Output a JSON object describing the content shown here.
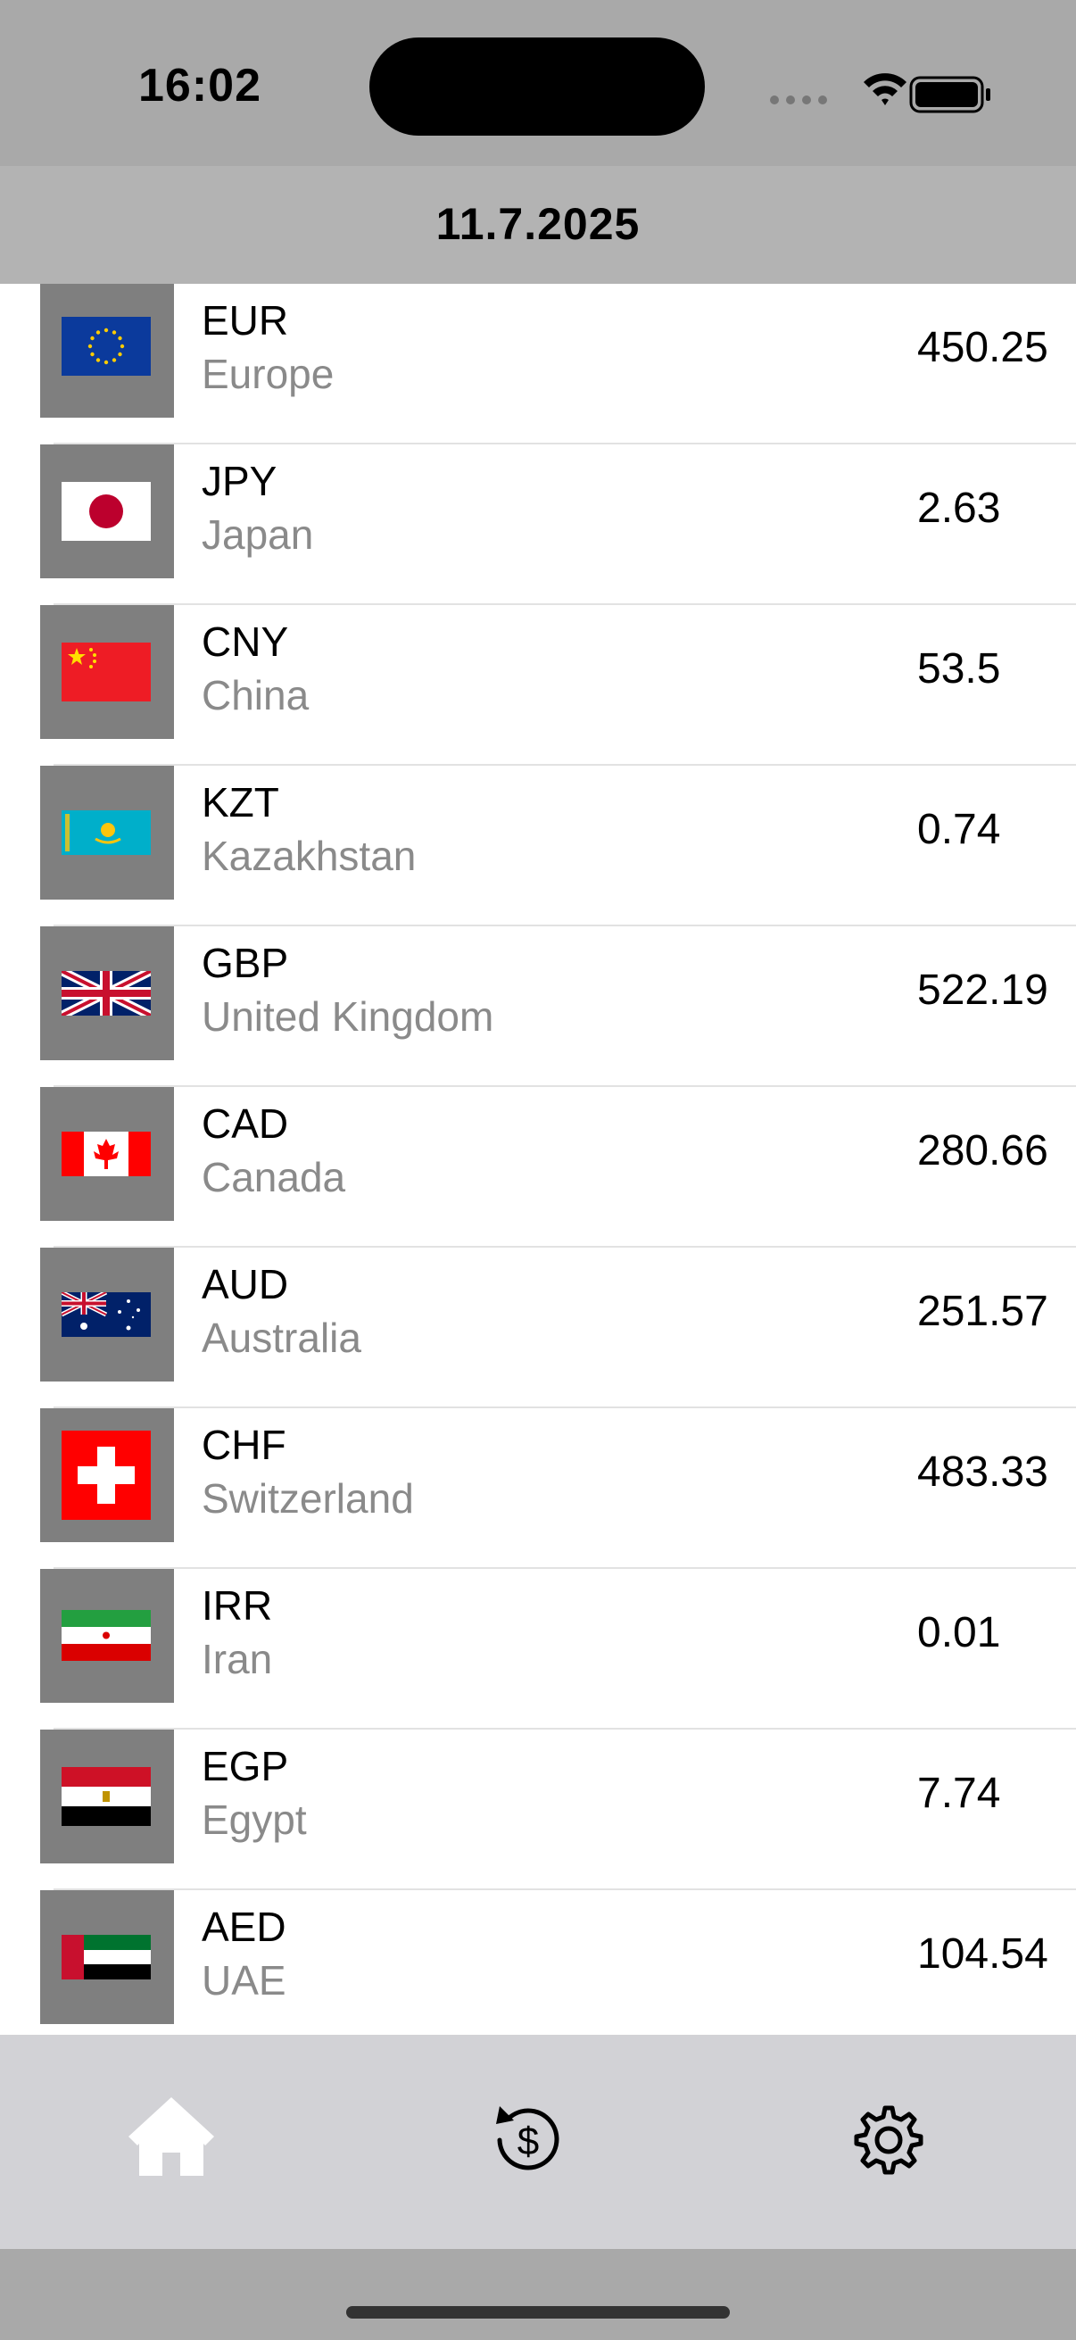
{
  "status_bar": {
    "time": "16:02"
  },
  "header": {
    "date": "11.7.2025"
  },
  "rates": [
    {
      "code": "EUR",
      "country": "Europe",
      "value": "450.25",
      "flag": "eu-flag-icon"
    },
    {
      "code": "JPY",
      "country": "Japan",
      "value": "2.63",
      "flag": "japan-flag-icon"
    },
    {
      "code": "CNY",
      "country": "China",
      "value": "53.5",
      "flag": "china-flag-icon"
    },
    {
      "code": "KZT",
      "country": "Kazakhstan",
      "value": "0.74",
      "flag": "kazakhstan-flag-icon"
    },
    {
      "code": "GBP",
      "country": "United Kingdom",
      "value": "522.19",
      "flag": "uk-flag-icon"
    },
    {
      "code": "CAD",
      "country": "Canada",
      "value": "280.66",
      "flag": "canada-flag-icon"
    },
    {
      "code": "AUD",
      "country": "Australia",
      "value": "251.57",
      "flag": "australia-flag-icon"
    },
    {
      "code": "CHF",
      "country": "Switzerland",
      "value": "483.33",
      "flag": "switzerland-flag-icon"
    },
    {
      "code": "IRR",
      "country": "Iran",
      "value": "0.01",
      "flag": "iran-flag-icon"
    },
    {
      "code": "EGP",
      "country": "Egypt",
      "value": "7.74",
      "flag": "egypt-flag-icon"
    },
    {
      "code": "AED",
      "country": "UAE",
      "value": "104.54",
      "flag": "uae-flag-icon"
    }
  ],
  "tab_bar": {
    "tabs": [
      {
        "icon": "home-icon",
        "selected": true
      },
      {
        "icon": "currency-exchange-icon",
        "selected": false
      },
      {
        "icon": "gear-icon",
        "selected": false
      }
    ]
  }
}
